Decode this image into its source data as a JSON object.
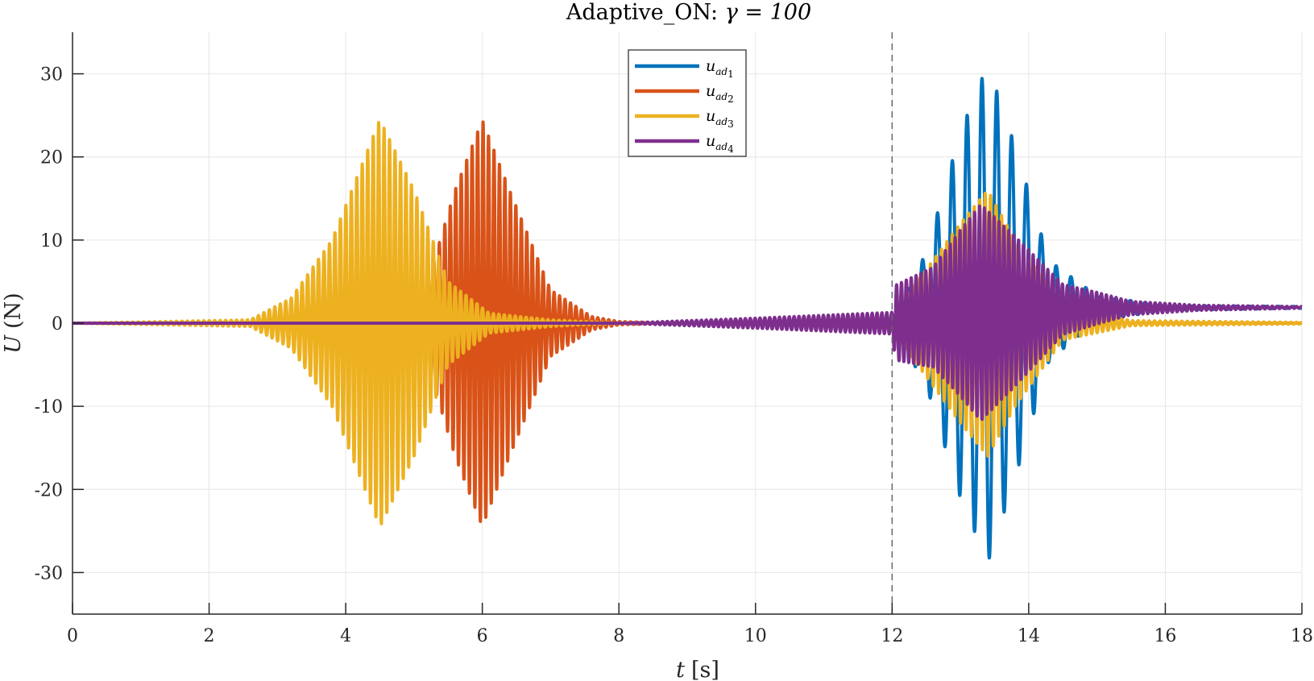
{
  "chart_data": {
    "type": "line",
    "title_prefix": "Adaptive_ON: ",
    "title_math": "γ = 100",
    "xlabel_var": "t",
    "xlabel_unit": "[s]",
    "ylabel_var": "U",
    "ylabel_unit": "(N)",
    "xlim": [
      0,
      18
    ],
    "ylim": [
      -35,
      35
    ],
    "xticks": [
      "0",
      "2",
      "4",
      "6",
      "8",
      "10",
      "12",
      "14",
      "16",
      "18"
    ],
    "yticks": [
      "30",
      "20",
      "10",
      "0",
      "-10",
      "-20",
      "-30"
    ],
    "xtick_values": [
      0,
      2,
      4,
      6,
      8,
      10,
      12,
      14,
      16,
      18
    ],
    "ytick_values": [
      30,
      20,
      10,
      0,
      -10,
      -20,
      -30
    ],
    "grid": true,
    "vline_x": 12,
    "vline_style": "dashed",
    "legend_position": "top-center",
    "series": [
      {
        "name": "u",
        "sub": "ad",
        "subsub": "1",
        "color": "#0072BD",
        "envelope": [
          [
            0,
            0
          ],
          [
            12,
            0
          ],
          [
            12.1,
            2
          ],
          [
            12.5,
            8
          ],
          [
            13,
            22
          ],
          [
            13.4,
            30
          ],
          [
            13.8,
            20
          ],
          [
            14.3,
            6
          ],
          [
            15,
            1.5
          ],
          [
            16,
            0.3
          ],
          [
            18,
            0.1
          ]
        ],
        "offset": [
          [
            0,
            0
          ],
          [
            12,
            0
          ],
          [
            13,
            1
          ],
          [
            15,
            1.8
          ],
          [
            18,
            1.9
          ]
        ],
        "freq": 4.6
      },
      {
        "name": "u",
        "sub": "ad",
        "subsub": "2",
        "color": "#D95319",
        "envelope": [
          [
            0,
            0
          ],
          [
            4.5,
            0.3
          ],
          [
            5.2,
            5
          ],
          [
            5.6,
            16
          ],
          [
            6,
            24.5
          ],
          [
            6.4,
            16
          ],
          [
            7,
            4
          ],
          [
            7.6,
            0.8
          ],
          [
            8,
            0.2
          ],
          [
            9,
            0
          ],
          [
            18,
            0
          ]
        ],
        "offset": [
          [
            0,
            0
          ],
          [
            18,
            0
          ]
        ],
        "freq": 12.5
      },
      {
        "name": "u",
        "sub": "ad",
        "subsub": "3",
        "color": "#EDB120",
        "envelope": [
          [
            0,
            0
          ],
          [
            2.6,
            0.4
          ],
          [
            3.2,
            3
          ],
          [
            3.8,
            10
          ],
          [
            4.5,
            24.5
          ],
          [
            5,
            16
          ],
          [
            5.5,
            5
          ],
          [
            6.1,
            1.2
          ],
          [
            7,
            0.4
          ],
          [
            8,
            0
          ],
          [
            12,
            0
          ],
          [
            12.1,
            2
          ],
          [
            13,
            12
          ],
          [
            13.4,
            16
          ],
          [
            13.8,
            10
          ],
          [
            14.5,
            2
          ],
          [
            15.5,
            0.3
          ],
          [
            18,
            0.1
          ]
        ],
        "offset": [
          [
            0,
            0
          ],
          [
            18,
            0
          ]
        ],
        "freq": 12.5
      },
      {
        "name": "u",
        "sub": "ad",
        "subsub": "4",
        "color": "#7E2F8E",
        "envelope": [
          [
            0,
            0
          ],
          [
            8,
            0
          ],
          [
            10,
            0.6
          ],
          [
            12,
            1.3
          ],
          [
            12.05,
            4.5
          ],
          [
            12.6,
            6
          ],
          [
            13.3,
            13
          ],
          [
            13.8,
            9
          ],
          [
            14.5,
            3
          ],
          [
            15.5,
            0.8
          ],
          [
            16.5,
            0.3
          ],
          [
            18,
            0.1
          ]
        ],
        "offset": [
          [
            0,
            0
          ],
          [
            12,
            0
          ],
          [
            13,
            1.2
          ],
          [
            15,
            1.8
          ],
          [
            18,
            1.9
          ]
        ],
        "freq": 14
      }
    ]
  }
}
